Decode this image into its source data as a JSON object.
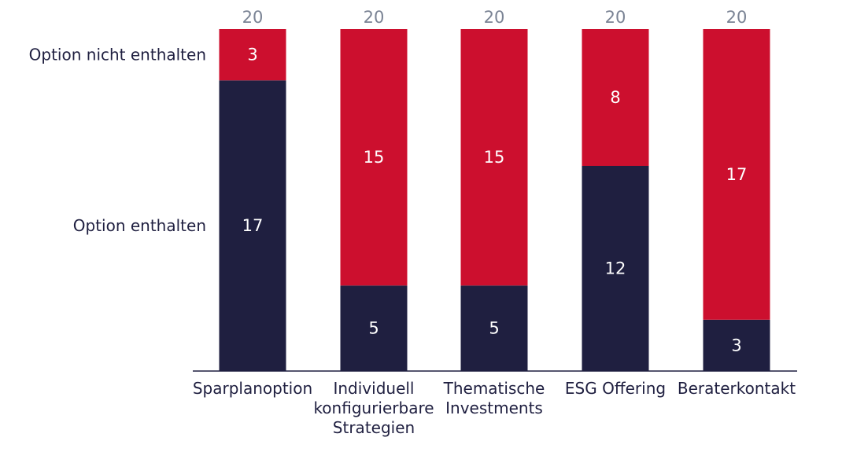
{
  "chart_data": {
    "type": "bar",
    "stacked": true,
    "categories": [
      [
        "Sparplanoption"
      ],
      [
        "Individuell",
        "konfigurierbare",
        "Strategien"
      ],
      [
        "Thematische",
        "Investments"
      ],
      [
        "ESG Offering"
      ],
      [
        "Beraterkontakt"
      ]
    ],
    "series": [
      {
        "name": "Option enthalten",
        "color": "#1f1f40",
        "values": [
          17,
          5,
          5,
          12,
          3
        ]
      },
      {
        "name": "Option nicht enthalten",
        "color": "#cc0f2e",
        "values": [
          3,
          15,
          15,
          8,
          17
        ]
      }
    ],
    "totals": [
      20,
      20,
      20,
      20,
      20
    ],
    "ylim": [
      0,
      20
    ],
    "grid": false,
    "legend": "left, aligned with first bar segments",
    "colors": {
      "axis": "#1f1f40",
      "total_text": "#7a8394",
      "bar_text": "#ffffff"
    }
  }
}
